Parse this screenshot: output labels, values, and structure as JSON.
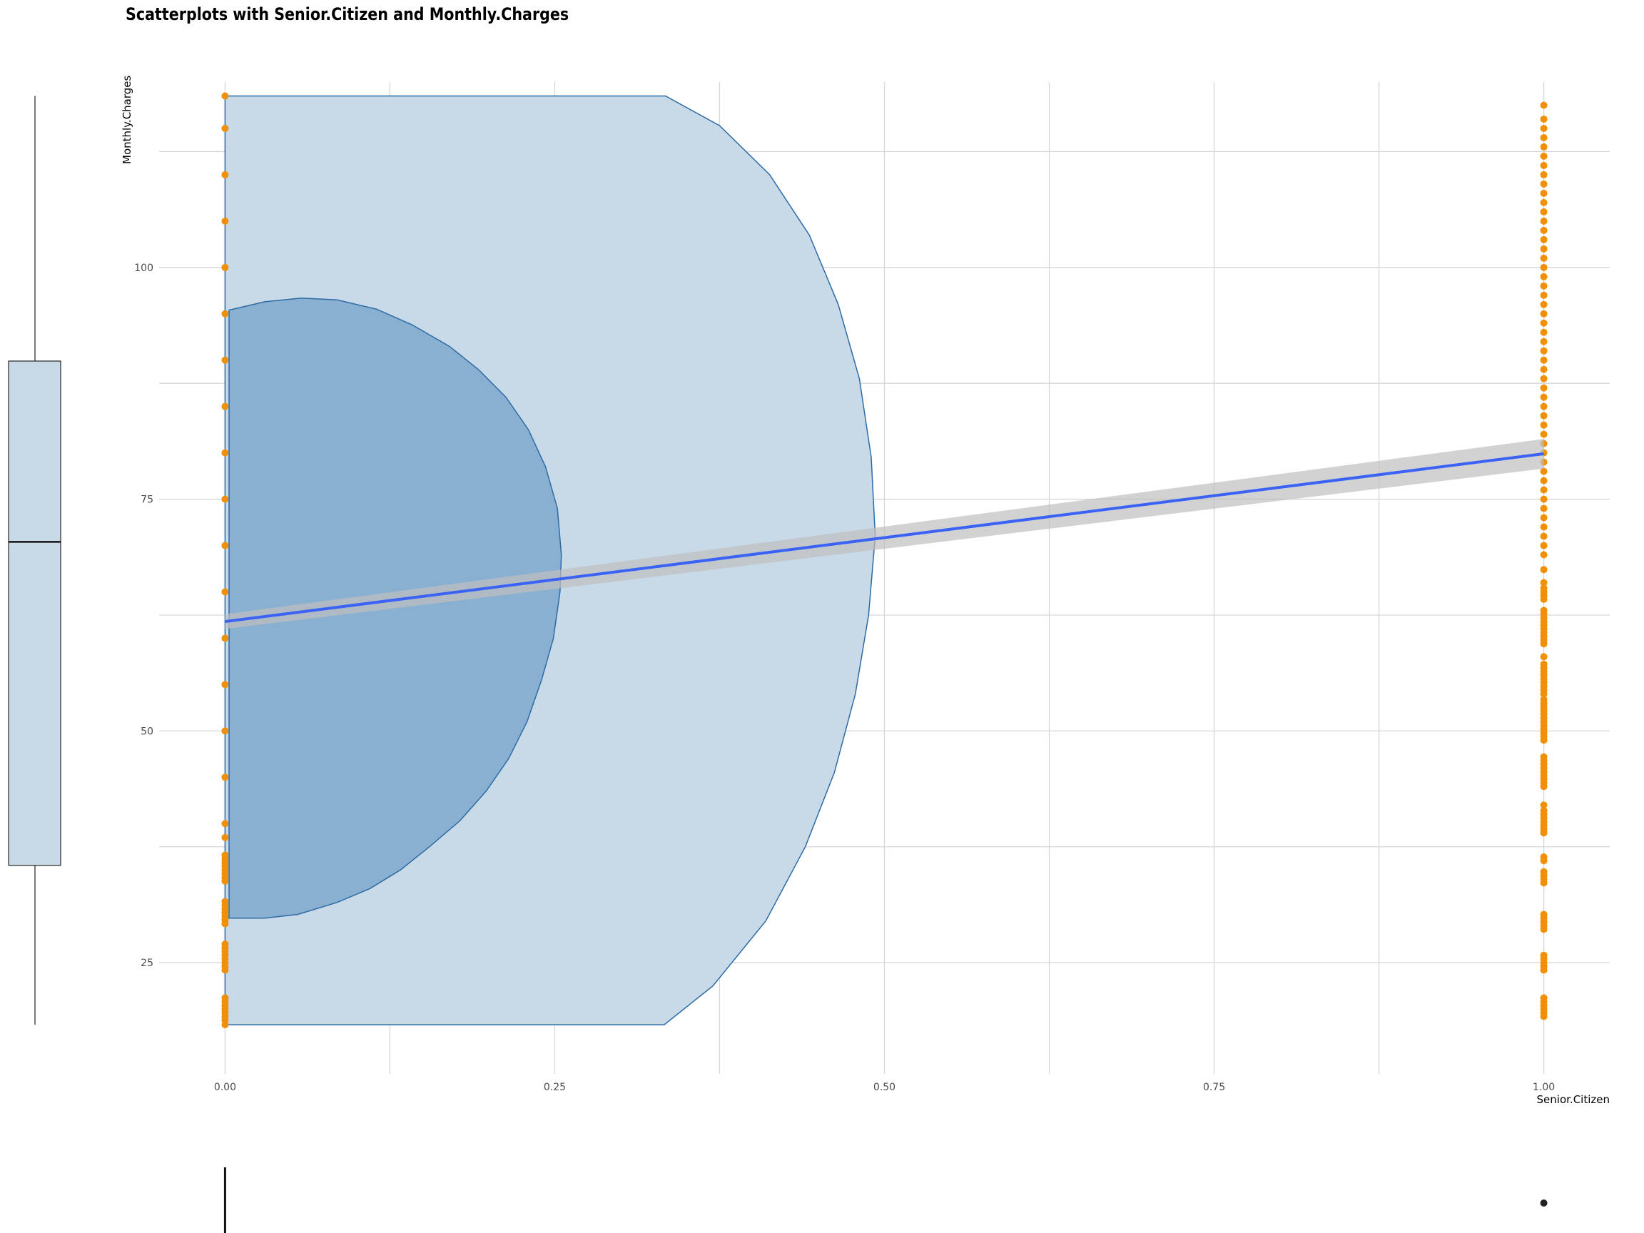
{
  "chart_data": {
    "type": "scatter",
    "title": "Scatterplots with Senior.Citizen and Monthly.Charges",
    "xlabel": "Senior.Citizen",
    "ylabel": "Monthly.Charges",
    "xlim": [
      -0.05,
      1.05
    ],
    "ylim": [
      13,
      120
    ],
    "x_ticks": [
      "0.00",
      "0.25",
      "0.50",
      "0.75",
      "1.00"
    ],
    "y_ticks": [
      "25",
      "50",
      "75",
      "100"
    ],
    "grid": true,
    "colors": {
      "points": "#f0900a",
      "regression_line": "#3a63f5",
      "confidence_band": "#bfbfbf",
      "density_outer": "#c8d9e8",
      "density_inner": "#86aed0",
      "density_stroke": "#2d6ba5",
      "boxplot_fill": "#c8d9e8"
    },
    "series": [
      {
        "x": 0,
        "y_values": [
          18.3,
          18.8,
          19.2,
          19.6,
          20.0,
          20.4,
          20.8,
          21.2,
          24.2,
          24.6,
          25.0,
          25.4,
          25.8,
          26.2,
          26.6,
          27.0,
          29.2,
          29.6,
          30.0,
          30.4,
          30.8,
          31.2,
          31.6,
          33.8,
          34.2,
          34.6,
          35.0,
          35.4,
          35.8,
          36.2,
          36.6,
          38.5,
          40,
          45,
          50,
          55,
          60,
          65,
          70,
          75,
          80,
          85,
          90,
          95,
          100,
          105,
          110,
          115,
          118.5
        ]
      },
      {
        "x": 1,
        "y_values": [
          19.2,
          19.6,
          20.0,
          20.4,
          20.8,
          21.2,
          24.2,
          24.6,
          25.0,
          25.4,
          25.8,
          28.6,
          29.0,
          29.4,
          29.8,
          30.2,
          33.6,
          34.0,
          34.4,
          34.8,
          36.0,
          36.4,
          39.0,
          39.4,
          39.8,
          40.2,
          40.6,
          41.0,
          41.4,
          42.0,
          44.0,
          44.4,
          44.8,
          45.2,
          45.6,
          46.0,
          46.4,
          46.8,
          47.2,
          49.0,
          49.4,
          49.8,
          50.2,
          50.6,
          51.0,
          51.4,
          51.8,
          52.2,
          52.6,
          53.0,
          53.4,
          54.0,
          54.4,
          54.8,
          55.2,
          55.6,
          56.0,
          56.4,
          56.8,
          57.2,
          58.0,
          59.4,
          59.8,
          60.2,
          60.6,
          61.0,
          61.4,
          61.8,
          62.2,
          62.6,
          63.0,
          64.2,
          64.6,
          65.0,
          65.4,
          66.0,
          67.4,
          69,
          70,
          71,
          72,
          73,
          74,
          75,
          76,
          77,
          78,
          79,
          80,
          81,
          82,
          83,
          84,
          85,
          86,
          87,
          88,
          89,
          90,
          91,
          92,
          93,
          94,
          95,
          96,
          97,
          98,
          99,
          100,
          101,
          102,
          103,
          104,
          105,
          106,
          107,
          108,
          109,
          110,
          111,
          112,
          113,
          114,
          115,
          116,
          117.5
        ]
      }
    ],
    "regression": {
      "x": [
        0,
        1
      ],
      "y": [
        61.8,
        79.9
      ],
      "ci_half_width": [
        0.8,
        1.6
      ]
    },
    "density_outer": [
      [
        0,
        18.3
      ],
      [
        0.333,
        18.3
      ],
      [
        0.37,
        22.5
      ],
      [
        0.41,
        29.5
      ],
      [
        0.44,
        37.5
      ],
      [
        0.462,
        45.5
      ],
      [
        0.478,
        54
      ],
      [
        0.488,
        62.5
      ],
      [
        0.493,
        71
      ],
      [
        0.49,
        79.5
      ],
      [
        0.481,
        88
      ],
      [
        0.465,
        96
      ],
      [
        0.443,
        103.5
      ],
      [
        0.413,
        110
      ],
      [
        0.375,
        115.3
      ],
      [
        0.334,
        118.5
      ],
      [
        0,
        118.5
      ]
    ],
    "density_inner": [
      [
        0,
        29.8
      ],
      [
        0.03,
        29.8
      ],
      [
        0.055,
        30.2
      ],
      [
        0.085,
        31.5
      ],
      [
        0.11,
        33
      ],
      [
        0.133,
        35
      ],
      [
        0.155,
        37.5
      ],
      [
        0.178,
        40.3
      ],
      [
        0.198,
        43.5
      ],
      [
        0.215,
        47
      ],
      [
        0.229,
        51
      ],
      [
        0.24,
        55.5
      ],
      [
        0.249,
        60
      ],
      [
        0.254,
        65
      ],
      [
        0.255,
        69
      ],
      [
        0.252,
        74
      ],
      [
        0.243,
        78.5
      ],
      [
        0.23,
        82.5
      ],
      [
        0.213,
        86
      ],
      [
        0.192,
        89
      ],
      [
        0.17,
        91.5
      ],
      [
        0.142,
        93.8
      ],
      [
        0.115,
        95.5
      ],
      [
        0.085,
        96.5
      ],
      [
        0.058,
        96.7
      ],
      [
        0.03,
        96.3
      ],
      [
        0.003,
        95.4
      ],
      [
        0.003,
        29.8
      ]
    ],
    "boxplot_y": {
      "min": 18.3,
      "q1": 35.5,
      "median": 70.4,
      "q3": 89.9,
      "max": 118.5
    },
    "boxplot_x": [
      {
        "x": 0,
        "min": 0,
        "max": 0
      },
      {
        "x": 1,
        "outlier": 1
      }
    ]
  }
}
